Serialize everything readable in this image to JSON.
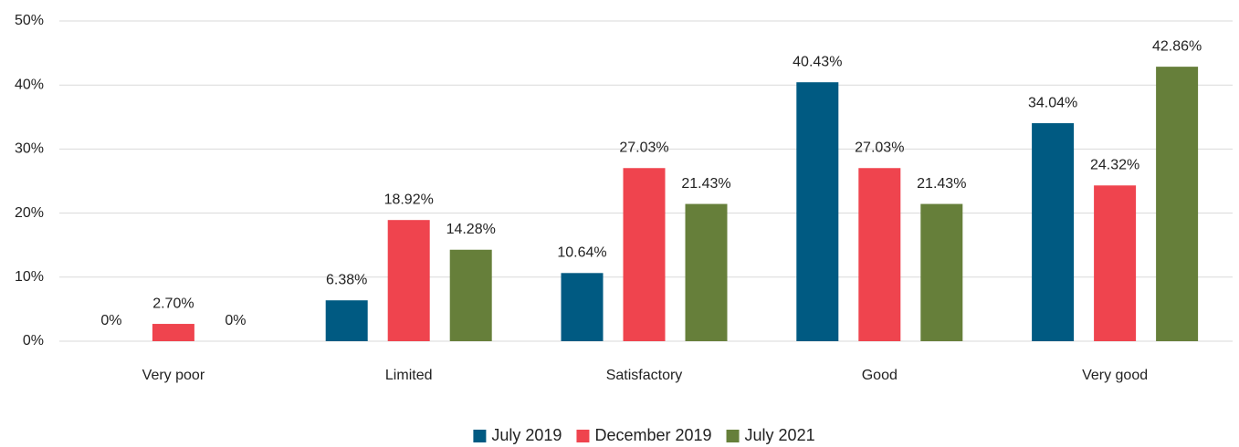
{
  "chart_data": {
    "type": "bar",
    "categories": [
      "Very poor",
      "Limited",
      "Satisfactory",
      "Good",
      "Very good"
    ],
    "series": [
      {
        "name": "July 2019",
        "color": "#005a82",
        "values": [
          0,
          6.38,
          10.64,
          40.43,
          34.04
        ],
        "value_labels": [
          "0%",
          "6.38%",
          "10.64%",
          "40.43%",
          "34.04%"
        ]
      },
      {
        "name": "December 2019",
        "color": "#ef444e",
        "values": [
          2.7,
          18.92,
          27.03,
          27.03,
          24.32
        ],
        "value_labels": [
          "2.70%",
          "18.92%",
          "27.03%",
          "27.03%",
          "24.32%"
        ]
      },
      {
        "name": "July 2021",
        "color": "#667f3a",
        "values": [
          0,
          14.28,
          21.43,
          21.43,
          42.86
        ],
        "value_labels": [
          "0%",
          "14.28%",
          "21.43%",
          "21.43%",
          "42.86%"
        ]
      }
    ],
    "ylim": [
      0,
      50
    ],
    "yticks": [
      {
        "value": 0,
        "label": "0%"
      },
      {
        "value": 10,
        "label": "10%"
      },
      {
        "value": 20,
        "label": "20%"
      },
      {
        "value": 30,
        "label": "30%"
      },
      {
        "value": 40,
        "label": "40%"
      },
      {
        "value": 50,
        "label": "50%"
      }
    ],
    "grid": true,
    "legend": "bottom"
  }
}
